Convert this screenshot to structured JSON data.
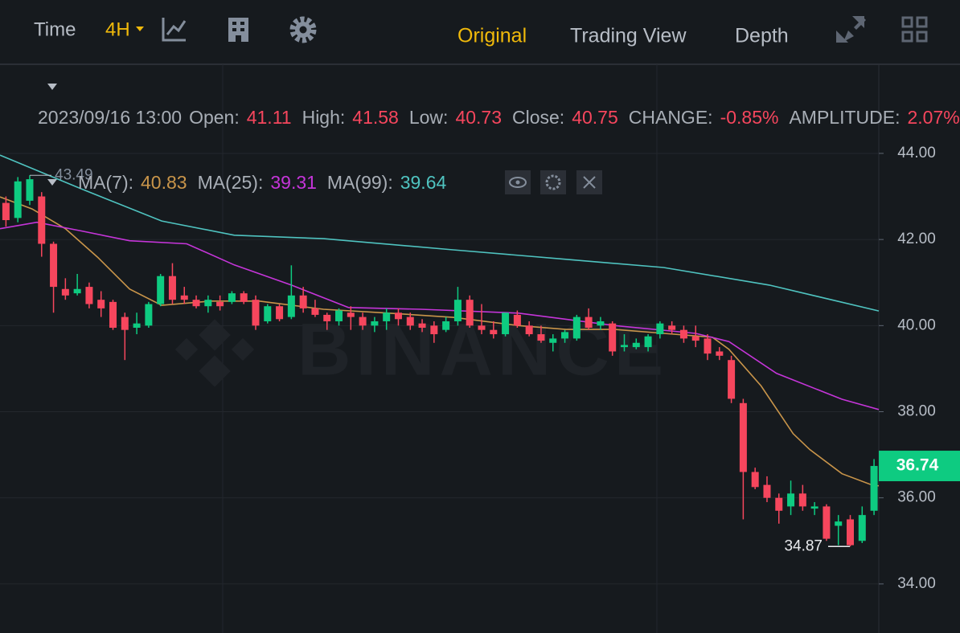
{
  "header": {
    "time_label": "Time",
    "interval": "4H",
    "views": [
      "Original",
      "Trading View",
      "Depth"
    ]
  },
  "info": {
    "datetime": "2023/09/16 13:00",
    "fields": [
      {
        "label": "Open:",
        "value": "41.11"
      },
      {
        "label": "High:",
        "value": "41.58"
      },
      {
        "label": "Low:",
        "value": "40.73"
      },
      {
        "label": "Close:",
        "value": "40.75"
      },
      {
        "label": "CHANGE:",
        "value": "-0.85%"
      },
      {
        "label": "AMPLITUDE:",
        "value": "2.07%"
      }
    ]
  },
  "chart_data": {
    "type": "candlestick",
    "watermark": "BINANCE",
    "xlim": [
      -0.5,
      73.4
    ],
    "ylim": [
      32.86,
      46.07
    ],
    "yticks": [
      {
        "value": 34,
        "label": "34.00"
      },
      {
        "value": 36,
        "label": "36.00"
      },
      {
        "value": 38,
        "label": "38.00"
      },
      {
        "value": 40,
        "label": "40.00"
      },
      {
        "value": 42,
        "label": "42.00"
      },
      {
        "value": 44,
        "label": "44.00"
      }
    ],
    "grid": true,
    "up_color": "#0ecb81",
    "down_color": "#f6465d",
    "open": [
      42.85,
      42.5,
      42.9,
      43.0,
      41.9,
      40.85,
      40.75,
      40.9,
      40.6,
      40.55,
      40.2,
      39.95,
      40.0,
      40.5,
      41.15,
      40.7,
      40.6,
      40.45,
      40.55,
      40.55,
      40.75,
      40.6,
      40.1,
      40.45,
      40.2,
      40.7,
      40.4,
      40.25,
      40.1,
      40.3,
      40.2,
      40.0,
      40.1,
      40.3,
      40.2,
      40.05,
      40.0,
      39.9,
      40.1,
      40.6,
      40.0,
      39.9,
      39.8,
      40.25,
      40.0,
      39.8,
      39.6,
      39.7,
      39.7,
      40.2,
      40.0,
      40.05,
      39.5,
      39.5,
      39.5,
      39.8,
      40.0,
      39.9,
      39.75,
      39.7,
      39.4,
      39.2,
      38.2,
      36.6,
      36.3,
      36.0,
      35.8,
      36.1,
      35.75,
      35.8,
      35.35,
      35.5,
      35.0,
      35.7
    ],
    "high": [
      43.0,
      43.45,
      43.49,
      43.1,
      41.95,
      41.1,
      41.2,
      41.0,
      40.8,
      40.6,
      40.3,
      40.3,
      40.55,
      41.2,
      41.45,
      40.9,
      40.7,
      40.7,
      40.7,
      40.8,
      40.8,
      40.7,
      40.5,
      40.5,
      41.4,
      40.9,
      40.6,
      40.3,
      40.4,
      40.45,
      40.3,
      40.2,
      40.4,
      40.4,
      40.3,
      40.15,
      40.1,
      40.2,
      40.9,
      40.7,
      40.5,
      40.1,
      40.3,
      40.35,
      40.1,
      40.0,
      39.8,
      39.9,
      40.25,
      40.4,
      40.2,
      40.1,
      39.8,
      39.7,
      39.8,
      40.1,
      40.1,
      40.0,
      40.0,
      39.8,
      39.5,
      39.3,
      38.3,
      36.7,
      36.5,
      36.1,
      36.4,
      36.3,
      35.9,
      35.85,
      35.6,
      35.6,
      35.8,
      36.9
    ],
    "low": [
      42.3,
      42.4,
      42.8,
      41.6,
      40.3,
      40.6,
      40.7,
      40.4,
      40.2,
      39.9,
      39.2,
      39.8,
      39.95,
      40.45,
      40.5,
      40.5,
      40.4,
      40.3,
      40.35,
      40.5,
      40.5,
      39.9,
      40.05,
      40.1,
      40.15,
      40.3,
      40.2,
      39.9,
      40.0,
      39.9,
      39.9,
      39.85,
      39.9,
      40.0,
      39.9,
      39.85,
      39.6,
      39.85,
      40.0,
      39.95,
      39.8,
      39.7,
      39.75,
      39.95,
      39.75,
      39.6,
      39.4,
      39.6,
      39.65,
      39.9,
      39.9,
      39.3,
      39.4,
      39.45,
      39.4,
      39.7,
      39.8,
      39.6,
      39.5,
      39.2,
      39.2,
      38.2,
      35.5,
      36.2,
      35.9,
      35.4,
      35.6,
      35.7,
      35.6,
      35.0,
      34.9,
      34.87,
      34.95,
      35.6
    ],
    "close": [
      42.45,
      43.35,
      43.4,
      41.9,
      40.9,
      40.7,
      40.85,
      40.5,
      40.4,
      39.95,
      39.9,
      40.05,
      40.5,
      41.15,
      40.6,
      40.6,
      40.45,
      40.6,
      40.45,
      40.75,
      40.55,
      40.0,
      40.45,
      40.15,
      40.7,
      40.4,
      40.25,
      40.1,
      40.35,
      40.2,
      40.0,
      40.1,
      40.3,
      40.15,
      40.0,
      39.95,
      39.8,
      40.1,
      40.6,
      40.0,
      39.9,
      39.8,
      40.3,
      40.0,
      39.8,
      39.65,
      39.7,
      39.85,
      40.2,
      39.95,
      40.1,
      39.4,
      39.55,
      39.6,
      39.75,
      40.05,
      39.9,
      39.7,
      39.65,
      39.35,
      39.3,
      38.3,
      36.6,
      36.25,
      36.0,
      35.7,
      36.1,
      35.8,
      35.8,
      35.05,
      35.45,
      34.9,
      35.6,
      36.74
    ],
    "ma_lines": [
      {
        "name": "MA(7):",
        "current": "40.83",
        "color": "#c9954a",
        "x": [
          -0.5,
          2.2,
          5.0,
          7.7,
          10.4,
          13.1,
          17.2,
          21.3,
          26.7,
          32.2,
          37.6,
          43.1,
          47.1,
          51.2,
          55.3,
          59.4,
          60.8,
          63.5,
          66.2,
          67.6,
          70.3,
          73.0,
          73.4
        ],
        "values": [
          42.99,
          42.71,
          42.25,
          41.59,
          40.85,
          40.47,
          40.57,
          40.57,
          40.38,
          40.29,
          40.19,
          40.0,
          39.91,
          39.91,
          39.82,
          39.73,
          39.45,
          38.6,
          37.49,
          37.12,
          36.56,
          36.28,
          36.28
        ]
      },
      {
        "name": "MA(25):",
        "current": "39.31",
        "color": "#c535d9",
        "x": [
          -0.5,
          2.6,
          6.3,
          10.4,
          15.2,
          19.2,
          24.0,
          28.8,
          34.9,
          43.1,
          51.2,
          58.0,
          60.8,
          64.8,
          70.3,
          73.4
        ],
        "values": [
          42.25,
          42.4,
          42.2,
          41.97,
          41.9,
          41.41,
          40.94,
          40.42,
          40.38,
          40.29,
          40.0,
          39.82,
          39.63,
          38.89,
          38.29,
          38.05
        ]
      },
      {
        "name": "MA(99):",
        "current": "39.64",
        "color": "#4fc3c0",
        "x": [
          -0.5,
          6.3,
          13.1,
          19.2,
          26.7,
          37.6,
          47.1,
          55.3,
          64.2,
          73.4
        ],
        "values": [
          43.96,
          43.18,
          42.43,
          42.1,
          42.02,
          41.76,
          41.54,
          41.35,
          40.94,
          40.34
        ]
      }
    ],
    "high_marker": 43.49,
    "low_marker": 34.87,
    "last_price": 36.74
  }
}
